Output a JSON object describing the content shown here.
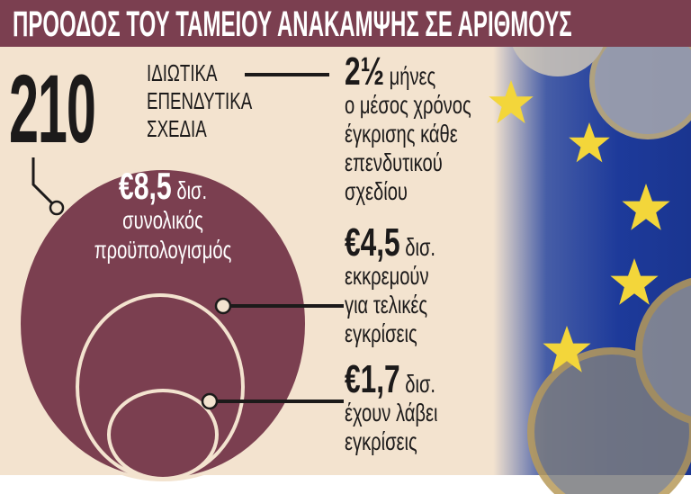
{
  "title": "ΠΡΟΟΔΟΣ ΤΟΥ ΤΑΜΕΙΟΥ ΑΝΑΚΑΜΨΗΣ ΣΕ ΑΡΙΘΜΟΥΣ",
  "colors": {
    "header": "#7b3f50",
    "circle": "#7b3f50",
    "background": "#f3e3cf",
    "ring": "#f3e3cf"
  },
  "plans": {
    "value": "210",
    "lines": [
      "ΙΔΙΩΤΙΚΑ",
      "ΕΠΕΝΔΥΤΙΚΑ",
      "ΣΧΕΔΙΑ"
    ]
  },
  "time": {
    "value": "2½",
    "unit": "μήνες",
    "lines": [
      "ο μέσος χρόνος",
      "έγκρισης κάθε",
      "επενδυτικού",
      "σχεδίου"
    ]
  },
  "total": {
    "value": "€8,5",
    "unit": "δισ.",
    "lines": [
      "συνολικός",
      "προϋπολογισμός"
    ]
  },
  "pending": {
    "value": "€4,5",
    "unit": "δισ.",
    "lines": [
      "εκκρεμούν",
      "για τελικές",
      "εγκρίσεις"
    ]
  },
  "approved": {
    "value": "€1,7",
    "unit": "δισ.",
    "lines": [
      "έχουν λάβει",
      "εγκρίσεις"
    ]
  }
}
